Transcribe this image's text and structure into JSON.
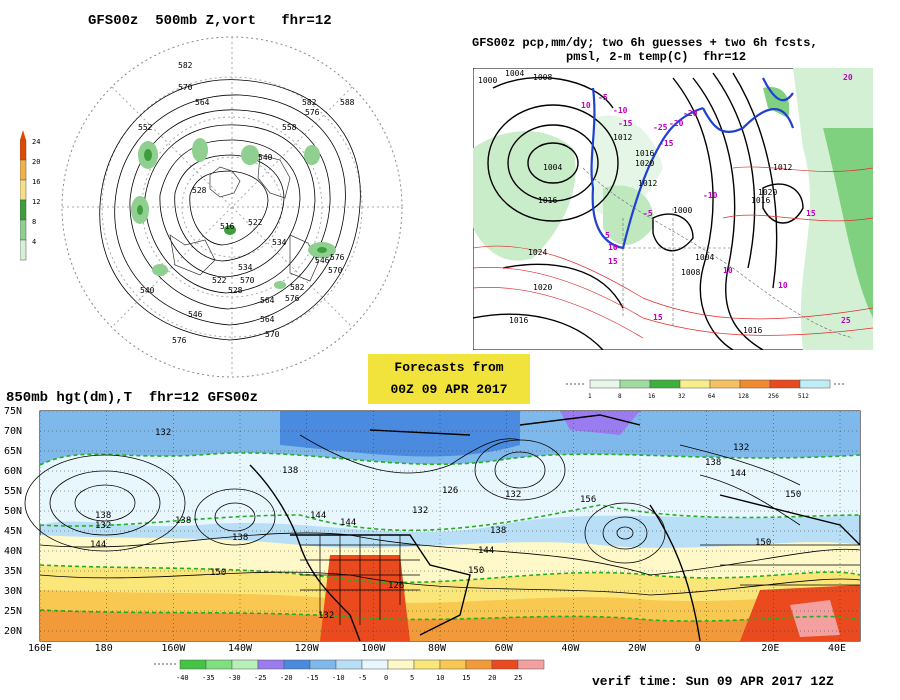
{
  "panels": {
    "top_left": {
      "title": "GFS00z  500mb Z,vort   fhr=12",
      "contour_labels": [
        "582",
        "570",
        "564",
        "588",
        "582",
        "576",
        "552",
        "558",
        "540",
        "528",
        "522",
        "516",
        "534",
        "546",
        "576",
        "570",
        "582",
        "576",
        "570",
        "564",
        "540",
        "546",
        "522",
        "528",
        "534",
        "564",
        "570",
        "576"
      ],
      "legend": {
        "values": [
          "24",
          "20",
          "16",
          "12",
          "8",
          "4"
        ],
        "colors": [
          "#e04a00",
          "#f2b24a",
          "#f5e08a",
          "#3c9f3c",
          "#8fcf8f",
          "#d5f0d5"
        ]
      }
    },
    "top_right": {
      "title_line1": "GFS00z pcp,mm/dy; two 6h guesses + two 6h fcsts,",
      "title_line2": "pmsl, 2-m temp(C)  fhr=12",
      "pressure_labels": [
        "1004",
        "1008",
        "1000",
        "1004",
        "1012",
        "1016",
        "1020",
        "1012",
        "1016",
        "1024",
        "1020",
        "1016",
        "1008",
        "1004",
        "1000",
        "1016",
        "1012",
        "1020",
        "1016"
      ],
      "temp_labels": [
        "10",
        "-5",
        "-10",
        "-15",
        "-20",
        "-25",
        "-15",
        "-20",
        "-10",
        "-5",
        "5",
        "10",
        "15",
        "10",
        "15",
        "10",
        "15",
        "20",
        "25"
      ],
      "legend": {
        "values": [
          "1",
          "8",
          "16",
          "32",
          "64",
          "128",
          "256",
          "512"
        ],
        "colors": [
          "#e8f7e8",
          "#9fdc9f",
          "#3cb03c",
          "#f7ef8a",
          "#f5c060",
          "#f08a30",
          "#e84a20",
          "#bfeef7"
        ]
      }
    },
    "bottom": {
      "title": "850mb hgt(dm),T  fhr=12 GFS00z",
      "lat_labels": [
        "75N",
        "70N",
        "65N",
        "60N",
        "55N",
        "50N",
        "45N",
        "40N",
        "35N",
        "30N",
        "25N",
        "20N"
      ],
      "lon_labels": [
        "160E",
        "180",
        "160W",
        "140W",
        "120W",
        "100W",
        "80W",
        "60W",
        "40W",
        "20W",
        "0",
        "20E",
        "40E"
      ],
      "height_labels": [
        "132",
        "138",
        "138",
        "132",
        "126",
        "132",
        "138",
        "132",
        "138",
        "144",
        "150",
        "156",
        "144",
        "150",
        "132",
        "138",
        "144",
        "150",
        "144",
        "126",
        "132",
        "138",
        "144",
        "150"
      ],
      "legend": {
        "values": [
          "-40",
          "-35",
          "-30",
          "-25",
          "-20",
          "-15",
          "-10",
          "-5",
          "0",
          "5",
          "10",
          "15",
          "20",
          "25"
        ],
        "colors": [
          "#43c443",
          "#7ee07e",
          "#b8f0b8",
          "#9a7cf0",
          "#4a8be0",
          "#7fb9ec",
          "#b9dff7",
          "#e8f6fd",
          "#fff8c8",
          "#fbe67a",
          "#f8c850",
          "#f29a3a",
          "#ea4a1e",
          "#f5a0a0"
        ]
      }
    }
  },
  "forecast_box": {
    "line1": "Forecasts from",
    "line2": "00Z 09 APR 2017"
  },
  "verif": "verif time: Sun 09 APR 2017 12Z"
}
